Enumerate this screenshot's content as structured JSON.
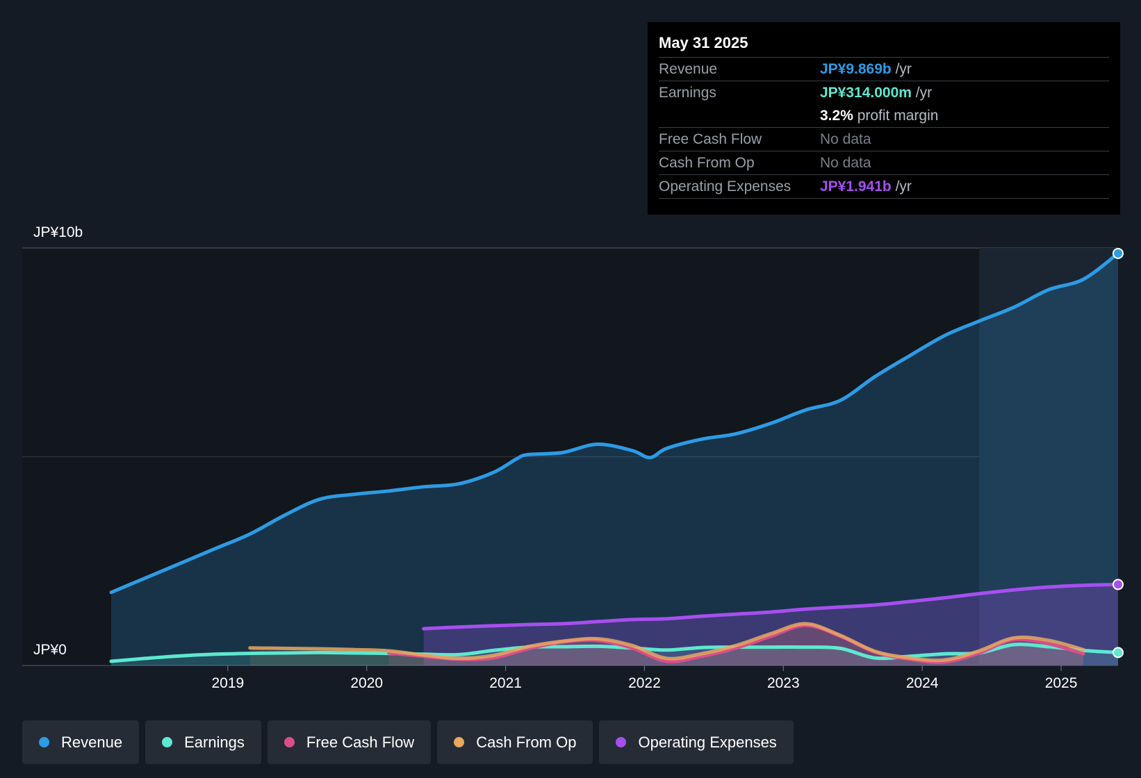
{
  "colors": {
    "background": "#151b24",
    "revenue": "#2d9be5",
    "earnings": "#5ee8d0",
    "free_cash_flow": "#d94f8a",
    "cash_from_op": "#e8a860",
    "operating_expenses": "#a64ff0"
  },
  "tooltip": {
    "date": "May 31 2025",
    "rows": [
      {
        "label": "Revenue",
        "value": "JP¥9.869b",
        "unit": " /yr",
        "color": "#2d9be5"
      },
      {
        "label": "Earnings",
        "value": "JP¥314.000m",
        "unit": " /yr",
        "color": "#5ee8d0"
      },
      {
        "label": "",
        "value": "3.2%",
        "unit": " profit margin",
        "color": "#ffffff"
      },
      {
        "label": "Free Cash Flow",
        "value": "",
        "unit": "No data",
        "color": "#7a7f87"
      },
      {
        "label": "Cash From Op",
        "value": "",
        "unit": "No data",
        "color": "#7a7f87"
      },
      {
        "label": "Operating Expenses",
        "value": "JP¥1.941b",
        "unit": " /yr",
        "color": "#a64ff0"
      }
    ]
  },
  "legend": [
    {
      "label": "Revenue",
      "icon": "revenue-dot-icon",
      "color": "#2d9be5"
    },
    {
      "label": "Earnings",
      "icon": "earnings-dot-icon",
      "color": "#5ee8d0"
    },
    {
      "label": "Free Cash Flow",
      "icon": "free-cash-flow-dot-icon",
      "color": "#d94f8a"
    },
    {
      "label": "Cash From Op",
      "icon": "cash-from-op-dot-icon",
      "color": "#e8a860"
    },
    {
      "label": "Operating Expenses",
      "icon": "operating-expenses-dot-icon",
      "color": "#a64ff0"
    }
  ],
  "chart_data": {
    "type": "area",
    "title": "",
    "xlabel": "",
    "ylabel": "",
    "x_unit": "year",
    "xlim": [
      2017.84,
      2025.41
    ],
    "ylim": [
      0,
      10
    ],
    "y_unit": "JP¥ billions",
    "y_tick_labels": [
      {
        "value": 10,
        "label": "JP¥10b"
      },
      {
        "value": 0,
        "label": "JP¥0"
      }
    ],
    "x_ticks": [
      2019,
      2020,
      2021,
      2022,
      2023,
      2024,
      2025
    ],
    "x_tick_labels": [
      "2019",
      "2020",
      "2021",
      "2022",
      "2023",
      "2024",
      "2025"
    ],
    "grid": true,
    "highlight_from": 2024.41,
    "series": [
      {
        "name": "Revenue",
        "key": "revenue",
        "x": [
          2018.16,
          2018.41,
          2018.66,
          2018.91,
          2019.16,
          2019.41,
          2019.66,
          2019.91,
          2020.16,
          2020.41,
          2020.66,
          2020.91,
          2021.08,
          2021.16,
          2021.41,
          2021.66,
          2021.91,
          2022.04,
          2022.16,
          2022.41,
          2022.66,
          2022.91,
          2023.16,
          2023.41,
          2023.66,
          2023.91,
          2024.16,
          2024.41,
          2024.66,
          2024.91,
          2025.16,
          2025.41
        ],
        "values": [
          1.75,
          2.1,
          2.45,
          2.8,
          3.15,
          3.6,
          3.98,
          4.1,
          4.18,
          4.28,
          4.35,
          4.62,
          4.95,
          5.05,
          5.1,
          5.3,
          5.15,
          4.98,
          5.2,
          5.42,
          5.55,
          5.8,
          6.12,
          6.35,
          6.92,
          7.42,
          7.9,
          8.25,
          8.58,
          9.0,
          9.25,
          9.87
        ]
      },
      {
        "name": "Earnings",
        "key": "earnings",
        "x": [
          2018.16,
          2018.41,
          2018.66,
          2018.91,
          2019.16,
          2019.41,
          2019.66,
          2019.91,
          2020.16,
          2020.41,
          2020.66,
          2020.91,
          2021.16,
          2021.41,
          2021.66,
          2021.91,
          2022.16,
          2022.41,
          2022.66,
          2022.91,
          2023.16,
          2023.41,
          2023.66,
          2023.91,
          2024.16,
          2024.41,
          2024.66,
          2024.91,
          2025.16,
          2025.41
        ],
        "values": [
          0.1,
          0.17,
          0.23,
          0.27,
          0.29,
          0.3,
          0.31,
          0.3,
          0.29,
          0.27,
          0.26,
          0.36,
          0.44,
          0.45,
          0.46,
          0.42,
          0.37,
          0.43,
          0.44,
          0.44,
          0.44,
          0.41,
          0.18,
          0.22,
          0.28,
          0.3,
          0.5,
          0.45,
          0.36,
          0.31
        ]
      },
      {
        "name": "Free Cash Flow",
        "key": "free_cash_flow",
        "x": [
          2020.16,
          2020.41,
          2020.66,
          2020.91,
          2021.16,
          2021.41,
          2021.66,
          2021.91,
          2022.16,
          2022.41,
          2022.66,
          2022.91,
          2023.16,
          2023.41,
          2023.66,
          2023.91,
          2024.16,
          2024.41,
          2024.66,
          2024.91,
          2025.16
        ],
        "values": [
          0.3,
          0.22,
          0.15,
          0.18,
          0.4,
          0.56,
          0.6,
          0.42,
          0.1,
          0.22,
          0.42,
          0.7,
          0.96,
          0.7,
          0.32,
          0.15,
          0.08,
          0.3,
          0.62,
          0.52,
          0.28
        ]
      },
      {
        "name": "Cash From Op",
        "key": "cash_from_op",
        "x": [
          2019.16,
          2019.41,
          2019.66,
          2019.91,
          2020.16,
          2020.41,
          2020.66,
          2020.91,
          2021.16,
          2021.41,
          2021.66,
          2021.91,
          2022.16,
          2022.41,
          2022.66,
          2022.91,
          2023.16,
          2023.41,
          2023.66,
          2023.91,
          2024.16,
          2024.41,
          2024.66,
          2024.91,
          2025.16
        ],
        "values": [
          0.42,
          0.41,
          0.4,
          0.38,
          0.35,
          0.25,
          0.17,
          0.24,
          0.45,
          0.58,
          0.64,
          0.48,
          0.17,
          0.28,
          0.48,
          0.76,
          1.0,
          0.72,
          0.34,
          0.18,
          0.13,
          0.35,
          0.66,
          0.6,
          0.38
        ]
      },
      {
        "name": "Operating Expenses",
        "key": "operating_expenses",
        "x": [
          2020.41,
          2020.66,
          2020.91,
          2021.16,
          2021.41,
          2021.66,
          2021.91,
          2022.16,
          2022.41,
          2022.66,
          2022.91,
          2023.16,
          2023.41,
          2023.66,
          2023.91,
          2024.16,
          2024.41,
          2024.66,
          2024.91,
          2025.16,
          2025.41
        ],
        "values": [
          0.88,
          0.92,
          0.95,
          0.98,
          1.0,
          1.05,
          1.1,
          1.12,
          1.18,
          1.23,
          1.28,
          1.35,
          1.4,
          1.45,
          1.53,
          1.62,
          1.72,
          1.81,
          1.88,
          1.92,
          1.94
        ]
      }
    ]
  }
}
